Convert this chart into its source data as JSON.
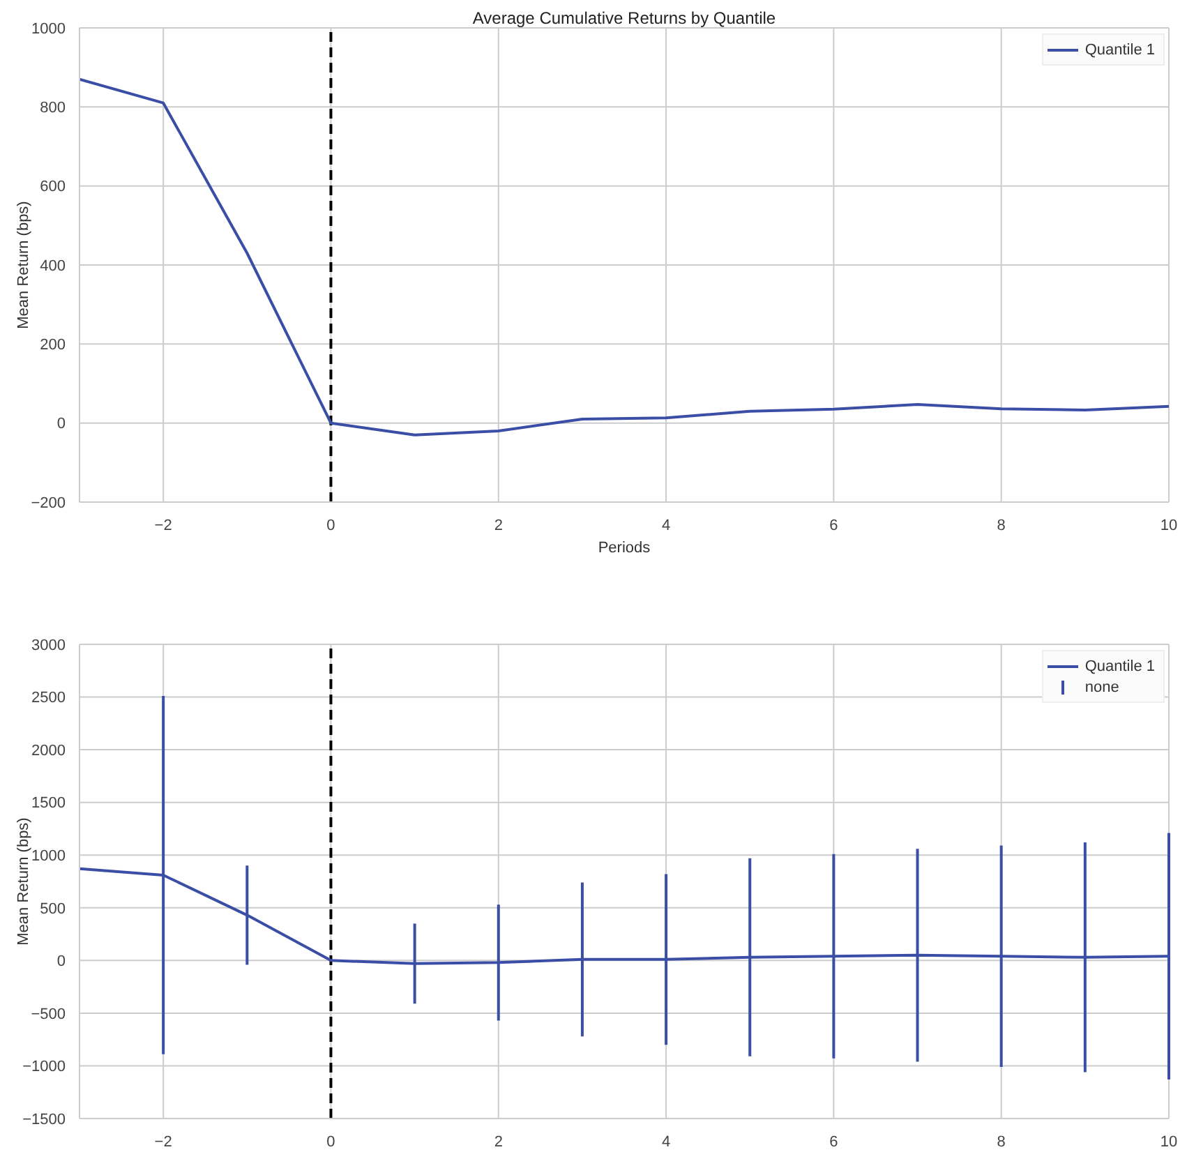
{
  "chart_data": [
    {
      "type": "line",
      "title": "Average Cumulative Returns by Quantile",
      "xlabel": "Periods",
      "ylabel": "Mean Return (bps)",
      "x": [
        -3,
        -2,
        -1,
        0,
        1,
        2,
        3,
        4,
        5,
        6,
        7,
        8,
        9,
        10
      ],
      "series": [
        {
          "name": "Quantile 1",
          "color": "#3b4ea6",
          "values": [
            870,
            810,
            430,
            0,
            -30,
            -20,
            10,
            13,
            30,
            35,
            47,
            36,
            33,
            42
          ]
        }
      ],
      "xlim": [
        -3,
        10
      ],
      "xticks": [
        {
          "value": -2,
          "label": "−2"
        },
        0,
        2,
        4,
        6,
        8,
        10
      ],
      "ylim": [
        -200,
        1000
      ],
      "yticks": [
        {
          "value": -200,
          "label": "−200"
        },
        0,
        200,
        400,
        600,
        800,
        1000
      ],
      "ref_lines": [
        {
          "axis": "x",
          "value": 0,
          "color": "#000000",
          "line_style": "dashed"
        }
      ],
      "grid": true,
      "legend": "top right",
      "marker": "none",
      "line_style": "solid"
    },
    {
      "type": "line",
      "ylabel": "Mean Return (bps)",
      "annotations": [
        "none"
      ],
      "x": [
        -3,
        -2,
        -1,
        0,
        1,
        2,
        3,
        4,
        5,
        6,
        7,
        8,
        9,
        10
      ],
      "series": [
        {
          "name": "Quantile 1",
          "color": "#3b4ea6",
          "values": [
            870,
            810,
            430,
            0,
            -30,
            -20,
            10,
            10,
            30,
            40,
            50,
            40,
            30,
            40
          ],
          "errors": [
            null,
            1700,
            470,
            null,
            380,
            550,
            730,
            810,
            940,
            970,
            1010,
            1050,
            1090,
            1170
          ]
        }
      ],
      "xlim": [
        -3,
        10
      ],
      "xticks": [
        {
          "value": -2,
          "label": "−2"
        },
        0,
        2,
        4,
        6,
        8,
        10
      ],
      "ylim": [
        -1500,
        3000
      ],
      "yticks": [
        {
          "value": -1500,
          "label": "−1500"
        },
        {
          "value": -1000,
          "label": "−1000"
        },
        {
          "value": -500,
          "label": "−500"
        },
        0,
        500,
        1000,
        1500,
        2000,
        2500,
        3000
      ],
      "ref_lines": [
        {
          "axis": "x",
          "value": 0,
          "color": "#000000",
          "line_style": "dashed"
        }
      ],
      "grid": true,
      "legend": "top right",
      "marker": "none",
      "line_style": "solid"
    }
  ]
}
